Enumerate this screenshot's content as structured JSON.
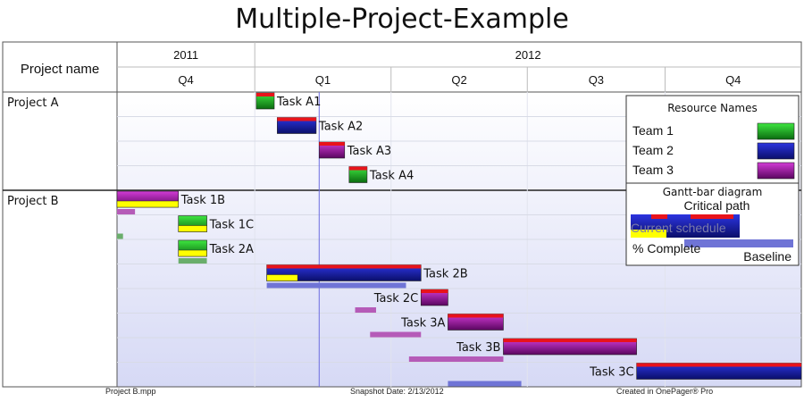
{
  "chart_data": {
    "type": "gantt",
    "title": "Multiple-Project-Example",
    "row_header": "Project name",
    "timescale": {
      "start": "2011-10-01",
      "end": "2012-12-31",
      "years": [
        {
          "label": "2011",
          "start": "2011-10-01",
          "end": "2012-01-01"
        },
        {
          "label": "2012",
          "start": "2012-01-01",
          "end": "2012-12-31"
        }
      ],
      "quarters": [
        {
          "label": "Q4",
          "start": "2011-10-01",
          "end": "2012-01-01"
        },
        {
          "label": "Q1",
          "start": "2012-01-01",
          "end": "2012-04-01"
        },
        {
          "label": "Q2",
          "start": "2012-04-01",
          "end": "2012-07-01"
        },
        {
          "label": "Q3",
          "start": "2012-07-01",
          "end": "2012-10-01"
        },
        {
          "label": "Q4",
          "start": "2012-10-01",
          "end": "2012-12-31"
        }
      ]
    },
    "snapshot_date": "2012-02-13",
    "projects": [
      {
        "name": "Project A",
        "tasks": [
          {
            "name": "Task A1",
            "start": "2012-01-02",
            "end": "2012-01-14",
            "team": "Team 1",
            "critical": "full",
            "complete": 0,
            "label_side": "right"
          },
          {
            "name": "Task A2",
            "start": "2012-01-16",
            "end": "2012-02-11",
            "team": "Team 2",
            "critical": "full",
            "complete": 0,
            "label_side": "right"
          },
          {
            "name": "Task A3",
            "start": "2012-02-13",
            "end": "2012-03-01",
            "team": "Team 3",
            "critical": "full",
            "complete": 0,
            "label_side": "right"
          },
          {
            "name": "Task A4",
            "start": "2012-03-04",
            "end": "2012-03-16",
            "team": "Team 1",
            "critical": "full",
            "complete": 0,
            "label_side": "right"
          }
        ]
      },
      {
        "name": "Project B",
        "tasks": [
          {
            "name": "Task 1B",
            "start": "2011-10-01",
            "end": "2011-11-11",
            "team": "Team 3",
            "critical": "none",
            "complete": 1,
            "baseline": [
              "2011-10-01",
              "2011-10-13"
            ],
            "label_side": "right"
          },
          {
            "name": "Task 1C",
            "start": "2011-11-11",
            "end": "2011-11-30",
            "team": "Team 1",
            "critical": "none",
            "complete": 1,
            "baseline": [
              "2011-10-01",
              "2011-10-05"
            ],
            "label_side": "right"
          },
          {
            "name": "Task 2A",
            "start": "2011-11-11",
            "end": "2011-11-30",
            "team": "Team 1",
            "critical": "none",
            "complete": 1,
            "baseline": [
              "2011-11-11",
              "2011-11-30"
            ],
            "label_side": "right"
          },
          {
            "name": "Task 2B",
            "start": "2012-01-09",
            "end": "2012-04-21",
            "team": "Team 2",
            "critical": "full",
            "complete": 0.2,
            "baseline": [
              "2012-01-09",
              "2012-04-11"
            ],
            "label_side": "right"
          },
          {
            "name": "Task 2C",
            "start": "2012-04-21",
            "end": "2012-05-09",
            "team": "Team 3",
            "critical": "full",
            "complete": 0,
            "baseline": [
              "2012-03-08",
              "2012-03-22"
            ],
            "label_side": "left"
          },
          {
            "name": "Task 3A",
            "start": "2012-05-09",
            "end": "2012-06-15",
            "team": "Team 3",
            "critical": "full",
            "complete": 0,
            "baseline": [
              "2012-03-18",
              "2012-04-21"
            ],
            "label_side": "left"
          },
          {
            "name": "Task 3B",
            "start": "2012-06-15",
            "end": "2012-09-12",
            "team": "Team 3",
            "critical": "full",
            "complete": 0,
            "baseline": [
              "2012-04-13",
              "2012-06-15"
            ],
            "label_side": "left"
          },
          {
            "name": "Task 3C",
            "start": "2012-09-12",
            "end": "2012-12-31",
            "team": "Team 2",
            "critical": "full",
            "complete": 0,
            "baseline": [
              "2012-05-09",
              "2012-06-27"
            ],
            "label_side": "left"
          }
        ]
      }
    ],
    "legend": {
      "resource_title": "Resource Names",
      "resources": [
        {
          "name": "Team 1",
          "color": "#15a81a"
        },
        {
          "name": "Team 2",
          "color": "#1a22b8"
        },
        {
          "name": "Team 3",
          "color": "#a110a8"
        }
      ],
      "diagram_title": "Gantt-bar diagram",
      "critical_label": "Critical path",
      "schedule_label": "Current schedule",
      "complete_label": "% Complete",
      "baseline_label": "Baseline"
    },
    "colors": {
      "critical": "#e8131b",
      "complete": "#ffff00",
      "baseline": "#6f74d6",
      "today_line": "#6c6ce0",
      "grid": "#d8dbe6",
      "shade_top": "#ffffff",
      "shade_bottom": "#dcdff7"
    }
  },
  "footer": {
    "file": "Project B.mpp",
    "snapshot": "Snapshot Date: 2/13/2012",
    "created": "Created in OnePager® Pro"
  }
}
